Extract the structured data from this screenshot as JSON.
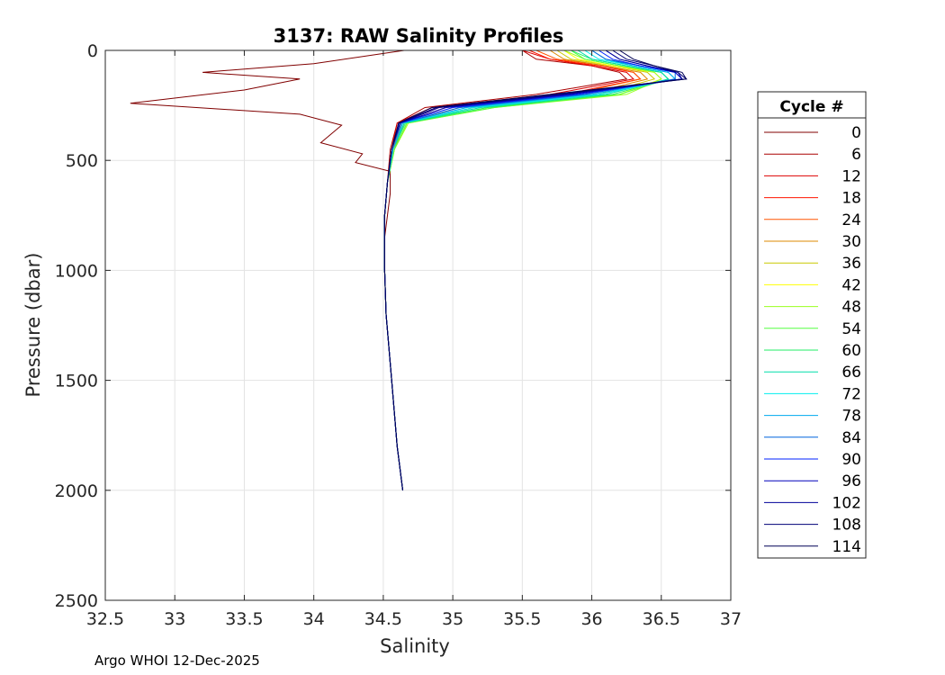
{
  "chart_data": {
    "type": "line",
    "title": "3137: RAW Salinity Profiles",
    "xlabel": "Salinity",
    "ylabel": "Pressure (dbar)",
    "xlim": [
      32.5,
      37
    ],
    "ylim": [
      0,
      2500
    ],
    "y_reversed": true,
    "grid": true,
    "xticks": [
      32.5,
      33,
      33.5,
      34,
      34.5,
      35,
      35.5,
      36,
      36.5,
      37
    ],
    "xtick_labels": [
      "32.5",
      "33",
      "33.5",
      "34",
      "34.5",
      "35",
      "35.5",
      "36",
      "36.5",
      "37"
    ],
    "yticks": [
      0,
      500,
      1000,
      1500,
      2000,
      2500
    ],
    "ytick_labels": [
      "0",
      "500",
      "1000",
      "1500",
      "2000",
      "2500"
    ],
    "legend_title": "Cycle #",
    "legend_position": "right-outside",
    "series": [
      {
        "name": "0",
        "color": "#800000",
        "salinity": [
          34.65,
          34.0,
          33.2,
          33.9,
          33.5,
          32.68,
          33.9,
          34.2,
          34.05,
          34.35,
          34.3,
          34.55,
          34.55,
          34.53,
          34.51,
          34.51,
          34.52,
          34.56,
          34.6,
          34.64
        ],
        "pressure": [
          0,
          60,
          100,
          130,
          180,
          240,
          290,
          340,
          420,
          470,
          510,
          550,
          650,
          750,
          850,
          1000,
          1200,
          1500,
          1800,
          2000
        ]
      },
      {
        "name": "6",
        "color": "#aa0000",
        "salinity": [
          35.5,
          35.6,
          36.0,
          36.2,
          36.25,
          35.6,
          34.8,
          34.6,
          34.55,
          34.53,
          34.51,
          34.51,
          34.52,
          34.56,
          34.6,
          34.64
        ],
        "pressure": [
          0,
          40,
          70,
          100,
          130,
          200,
          260,
          330,
          450,
          600,
          750,
          1000,
          1200,
          1500,
          1800,
          2000
        ]
      },
      {
        "name": "12",
        "color": "#dd0000",
        "salinity": [
          35.5,
          35.7,
          36.0,
          36.25,
          36.3,
          35.7,
          34.85,
          34.6,
          34.56,
          34.53,
          34.51,
          34.51,
          34.52,
          34.56,
          34.6,
          34.64
        ],
        "pressure": [
          0,
          40,
          70,
          100,
          130,
          200,
          260,
          330,
          450,
          600,
          750,
          1000,
          1200,
          1500,
          1800,
          2000
        ]
      },
      {
        "name": "18",
        "color": "#ff1500",
        "salinity": [
          35.55,
          35.7,
          36.05,
          36.3,
          36.35,
          35.8,
          34.9,
          34.62,
          34.57,
          34.53,
          34.51,
          34.51,
          34.52,
          34.56,
          34.6,
          34.64
        ],
        "pressure": [
          0,
          40,
          70,
          100,
          130,
          200,
          260,
          330,
          450,
          600,
          750,
          1000,
          1200,
          1500,
          1800,
          2000
        ]
      },
      {
        "name": "24",
        "color": "#ff5500",
        "salinity": [
          35.6,
          35.75,
          36.1,
          36.3,
          36.35,
          35.85,
          34.95,
          34.63,
          34.57,
          34.53,
          34.51,
          34.51,
          34.52,
          34.56,
          34.6,
          34.64
        ],
        "pressure": [
          0,
          40,
          70,
          100,
          130,
          200,
          260,
          330,
          450,
          600,
          750,
          1000,
          1200,
          1500,
          1800,
          2000
        ]
      },
      {
        "name": "30",
        "color": "#dd8800",
        "salinity": [
          35.7,
          35.8,
          36.1,
          36.35,
          36.4,
          35.95,
          35.05,
          34.65,
          34.58,
          34.53,
          34.51,
          34.51,
          34.52,
          34.56,
          34.6,
          34.64
        ],
        "pressure": [
          0,
          40,
          70,
          100,
          130,
          200,
          260,
          330,
          450,
          600,
          750,
          1000,
          1200,
          1500,
          1800,
          2000
        ]
      },
      {
        "name": "36",
        "color": "#c8c800",
        "salinity": [
          35.75,
          35.85,
          36.15,
          36.4,
          36.45,
          36.05,
          35.15,
          34.67,
          34.58,
          34.53,
          34.51,
          34.51,
          34.52,
          34.56,
          34.6,
          34.64
        ],
        "pressure": [
          0,
          40,
          70,
          100,
          130,
          200,
          260,
          330,
          450,
          600,
          750,
          1000,
          1200,
          1500,
          1800,
          2000
        ]
      },
      {
        "name": "42",
        "color": "#ffff00",
        "salinity": [
          35.8,
          35.9,
          36.15,
          36.45,
          36.5,
          36.2,
          35.25,
          34.68,
          34.58,
          34.53,
          34.51,
          34.51,
          34.52,
          34.56,
          34.6,
          34.64
        ],
        "pressure": [
          0,
          40,
          70,
          100,
          130,
          200,
          260,
          330,
          450,
          600,
          750,
          1000,
          1200,
          1500,
          1800,
          2000
        ]
      },
      {
        "name": "48",
        "color": "#9aff20",
        "salinity": [
          35.8,
          35.95,
          36.2,
          36.45,
          36.5,
          36.25,
          35.3,
          34.68,
          34.58,
          34.53,
          34.51,
          34.51,
          34.52,
          34.56,
          34.6,
          34.64
        ],
        "pressure": [
          0,
          40,
          70,
          100,
          130,
          200,
          260,
          330,
          450,
          600,
          750,
          1000,
          1200,
          1500,
          1800,
          2000
        ]
      },
      {
        "name": "54",
        "color": "#55ff40",
        "salinity": [
          35.85,
          35.95,
          36.2,
          36.5,
          36.55,
          36.2,
          35.3,
          34.67,
          34.58,
          34.53,
          34.51,
          34.51,
          34.52,
          34.56,
          34.6,
          34.64
        ],
        "pressure": [
          0,
          40,
          70,
          100,
          130,
          200,
          260,
          330,
          450,
          600,
          750,
          1000,
          1200,
          1500,
          1800,
          2000
        ]
      },
      {
        "name": "60",
        "color": "#22ee66",
        "salinity": [
          35.85,
          36.0,
          36.25,
          36.5,
          36.55,
          36.15,
          35.25,
          34.66,
          34.57,
          34.53,
          34.51,
          34.51,
          34.52,
          34.56,
          34.6,
          34.64
        ],
        "pressure": [
          0,
          40,
          70,
          100,
          130,
          200,
          260,
          330,
          450,
          600,
          750,
          1000,
          1200,
          1500,
          1800,
          2000
        ]
      },
      {
        "name": "66",
        "color": "#00ddaa",
        "salinity": [
          35.9,
          36.0,
          36.25,
          36.5,
          36.55,
          36.1,
          35.2,
          34.65,
          34.57,
          34.53,
          34.51,
          34.51,
          34.52,
          34.56,
          34.6,
          34.64
        ],
        "pressure": [
          0,
          40,
          70,
          100,
          130,
          200,
          260,
          330,
          450,
          600,
          750,
          1000,
          1200,
          1500,
          1800,
          2000
        ]
      },
      {
        "name": "72",
        "color": "#00eeee",
        "salinity": [
          35.95,
          36.05,
          36.3,
          36.55,
          36.6,
          36.05,
          35.15,
          34.64,
          34.57,
          34.53,
          34.51,
          34.51,
          34.52,
          34.56,
          34.6,
          34.64
        ],
        "pressure": [
          0,
          40,
          70,
          100,
          130,
          200,
          260,
          330,
          450,
          600,
          750,
          1000,
          1200,
          1500,
          1800,
          2000
        ]
      },
      {
        "name": "78",
        "color": "#00aaee",
        "salinity": [
          36.0,
          36.1,
          36.3,
          36.55,
          36.6,
          36.0,
          35.1,
          34.64,
          34.57,
          34.53,
          34.51,
          34.51,
          34.52,
          34.56,
          34.6,
          34.64
        ],
        "pressure": [
          0,
          40,
          70,
          100,
          130,
          200,
          260,
          330,
          450,
          600,
          750,
          1000,
          1200,
          1500,
          1800,
          2000
        ]
      },
      {
        "name": "84",
        "color": "#0066dd",
        "salinity": [
          36.0,
          36.1,
          36.35,
          36.6,
          36.6,
          35.95,
          35.05,
          34.63,
          34.56,
          34.53,
          34.51,
          34.51,
          34.52,
          34.56,
          34.6,
          34.64
        ],
        "pressure": [
          0,
          40,
          70,
          100,
          130,
          200,
          260,
          330,
          450,
          600,
          750,
          1000,
          1200,
          1500,
          1800,
          2000
        ]
      },
      {
        "name": "90",
        "color": "#0022ff",
        "salinity": [
          36.05,
          36.15,
          36.35,
          36.6,
          36.65,
          35.9,
          35.0,
          34.62,
          34.56,
          34.53,
          34.51,
          34.51,
          34.52,
          34.56,
          34.6,
          34.64
        ],
        "pressure": [
          0,
          40,
          70,
          100,
          130,
          200,
          260,
          330,
          450,
          600,
          750,
          1000,
          1200,
          1500,
          1800,
          2000
        ]
      },
      {
        "name": "96",
        "color": "#0000bb",
        "salinity": [
          36.1,
          36.2,
          36.4,
          36.6,
          36.65,
          35.85,
          34.95,
          34.62,
          34.56,
          34.53,
          34.51,
          34.51,
          34.52,
          34.56,
          34.6,
          34.64
        ],
        "pressure": [
          0,
          40,
          70,
          100,
          130,
          200,
          260,
          330,
          450,
          600,
          750,
          1000,
          1200,
          1500,
          1800,
          2000
        ]
      },
      {
        "name": "102",
        "color": "#000099",
        "salinity": [
          36.1,
          36.2,
          36.4,
          36.62,
          36.65,
          35.8,
          34.9,
          34.62,
          34.56,
          34.53,
          34.51,
          34.51,
          34.52,
          34.56,
          34.6,
          34.64
        ],
        "pressure": [
          0,
          40,
          70,
          100,
          130,
          200,
          260,
          330,
          450,
          600,
          750,
          1000,
          1200,
          1500,
          1800,
          2000
        ]
      },
      {
        "name": "108",
        "color": "#000077",
        "salinity": [
          36.15,
          36.25,
          36.45,
          36.62,
          36.68,
          35.75,
          34.88,
          34.61,
          34.56,
          34.53,
          34.51,
          34.51,
          34.52,
          34.56,
          34.6,
          34.64
        ],
        "pressure": [
          0,
          40,
          70,
          100,
          130,
          200,
          260,
          330,
          450,
          600,
          750,
          1000,
          1200,
          1500,
          1800,
          2000
        ]
      },
      {
        "name": "114",
        "color": "#000055",
        "salinity": [
          36.2,
          36.3,
          36.45,
          36.65,
          36.68,
          35.7,
          34.85,
          34.61,
          34.56,
          34.53,
          34.51,
          34.51,
          34.52,
          34.56,
          34.6,
          34.64
        ],
        "pressure": [
          0,
          40,
          70,
          100,
          130,
          200,
          260,
          330,
          450,
          600,
          750,
          1000,
          1200,
          1500,
          1800,
          2000
        ]
      }
    ]
  },
  "footer": "Argo WHOI 12-Dec-2025"
}
